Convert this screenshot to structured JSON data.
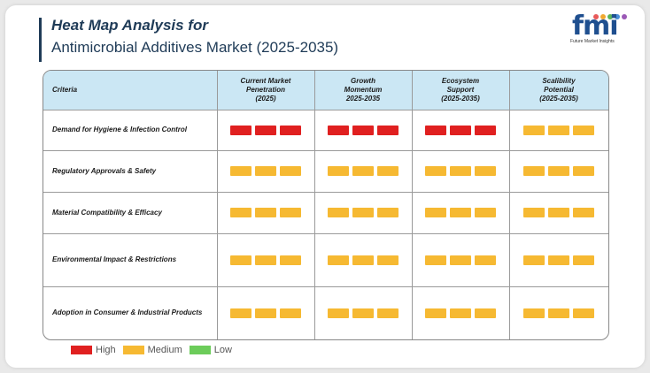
{
  "header": {
    "title_line1": "Heat Map Analysis for",
    "title_line2": "Antimicrobial Additives Market (2025-2035)"
  },
  "logo": {
    "mark": "fmi",
    "tagline": "Future Market Insights",
    "dot_colors": [
      "#e85a5a",
      "#f0a830",
      "#5ab55a",
      "#4a90d9",
      "#9b59b6"
    ]
  },
  "colors": {
    "High": "#e02020",
    "Medium": "#f6b932",
    "Low": "#6ccc5a",
    "header_bg": "#cbe7f4"
  },
  "chart_data": {
    "type": "heatmap",
    "title": "Heat Map Analysis for Antimicrobial Additives Market (2025-2035)",
    "row_header": "Criteria",
    "columns": [
      "Current Market\nPenetration\n(2025)",
      "Growth\nMomentum\n2025-2035",
      "Ecosystem\nSupport\n(2025-2035)",
      "Scalibility\nPotential\n(2025-2035)"
    ],
    "rows": [
      {
        "label": "Demand for Hygiene & Infection Control",
        "values": [
          "High",
          "High",
          "High",
          "Medium"
        ]
      },
      {
        "label": "Regulatory Approvals & Safety",
        "values": [
          "Medium",
          "Medium",
          "Medium",
          "Medium"
        ]
      },
      {
        "label": "Material Compatibility & Efficacy",
        "values": [
          "Medium",
          "Medium",
          "Medium",
          "Medium"
        ]
      },
      {
        "label": "Environmental Impact & Restrictions",
        "values": [
          "Medium",
          "Medium",
          "Medium",
          "Medium"
        ]
      },
      {
        "label": "Adoption in Consumer & Industrial Products",
        "values": [
          "Medium",
          "Medium",
          "Medium",
          "Medium"
        ]
      }
    ],
    "legend": [
      "High",
      "Medium",
      "Low"
    ],
    "legend_placement": "bottom-left"
  }
}
